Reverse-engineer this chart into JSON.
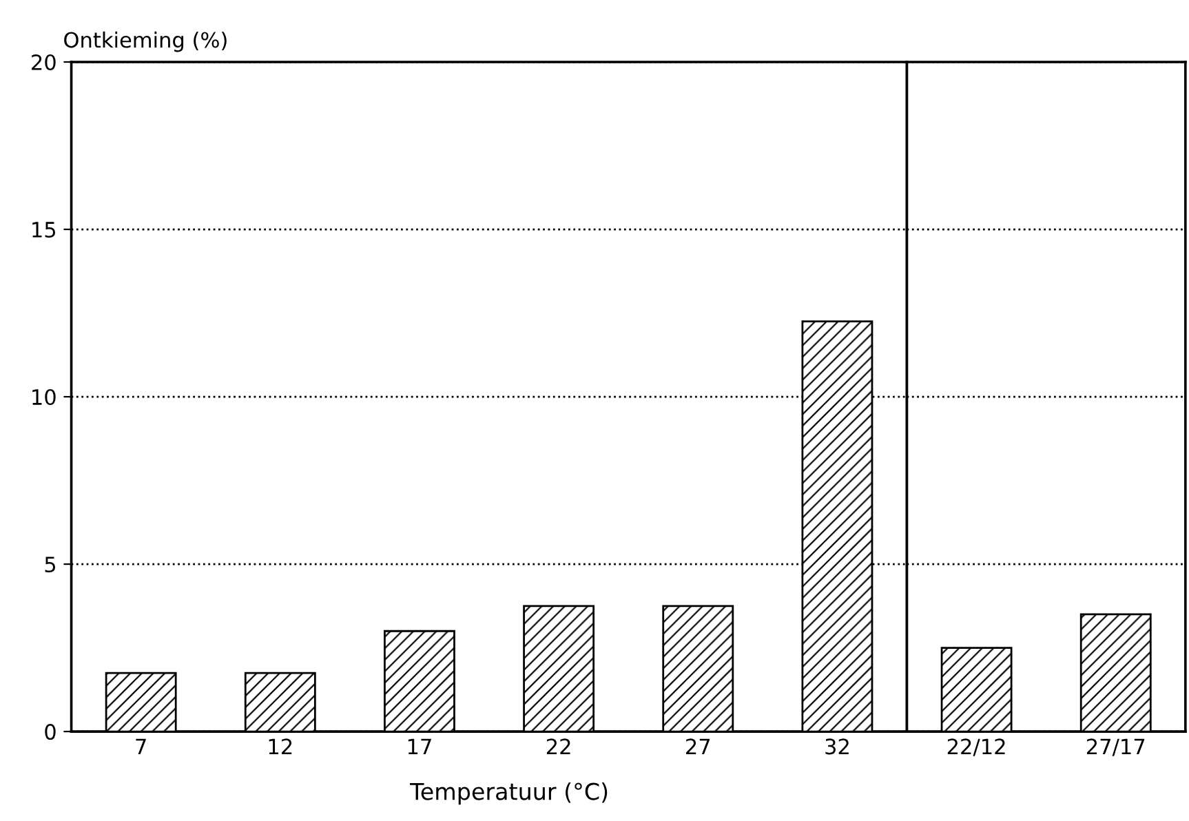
{
  "chart_data": [
    {
      "type": "bar",
      "ylabel": "Ontkieming (%)",
      "xlabel": "Temperatuur (°C)",
      "categories": [
        "7",
        "12",
        "17",
        "22",
        "27",
        "32"
      ],
      "values": [
        1.75,
        1.75,
        3.0,
        3.75,
        3.75,
        12.25
      ],
      "color": "#000000",
      "ylim": [
        0,
        20
      ],
      "yticks": [
        0,
        5,
        10,
        15,
        20
      ],
      "grid": "y"
    },
    {
      "type": "bar",
      "categories": [
        "22/12",
        "27/17"
      ],
      "values": [
        2.5,
        3.5
      ],
      "color": "#000000",
      "ylim": [
        0,
        20
      ],
      "yticks": [
        0,
        5,
        10,
        15,
        20
      ],
      "grid": "y",
      "tick_labels": "x"
    }
  ]
}
